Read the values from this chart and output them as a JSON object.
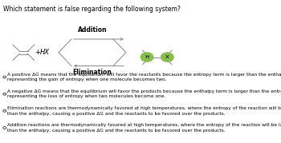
{
  "title": "Which statement is false regarding the following system?",
  "title_fontsize": 5.5,
  "background_color": "#ffffff",
  "reaction_label_addition": "Addition",
  "reaction_label_elimination": "Elimination",
  "hx_label": "HX",
  "options": [
    "A positive ΔG means that the equilibrium will favor the reactants because the entropy term is larger than the enthalpy term\nrepresenting the gain of entropy when one molecule becomes two.",
    "A negative ΔG means that the equilibrium will favor the products because the enthalpy term is larger than the entropy term\nrepresenting the loss of entropy when two molecules become one.",
    "Elimination reactions are thermodynamically favored at high temperatures, where the entropy of the reaction will be larger\nthan the enthalpy, causing a positive ΔG and the reactants to be favored over the products.",
    "Addition reactions are thermodynamically favored at high temperatures, where the entropy of the reaction will be larger\nthan the enthalpy, causing a positive ΔG and the reactants to be favored over the products."
  ],
  "option_fontsize": 4.2,
  "alkene_color": "#888888",
  "product_h_color": "#8abe50",
  "product_x_color": "#8abe50",
  "arrow_color": "#888888",
  "text_color": "#555555"
}
